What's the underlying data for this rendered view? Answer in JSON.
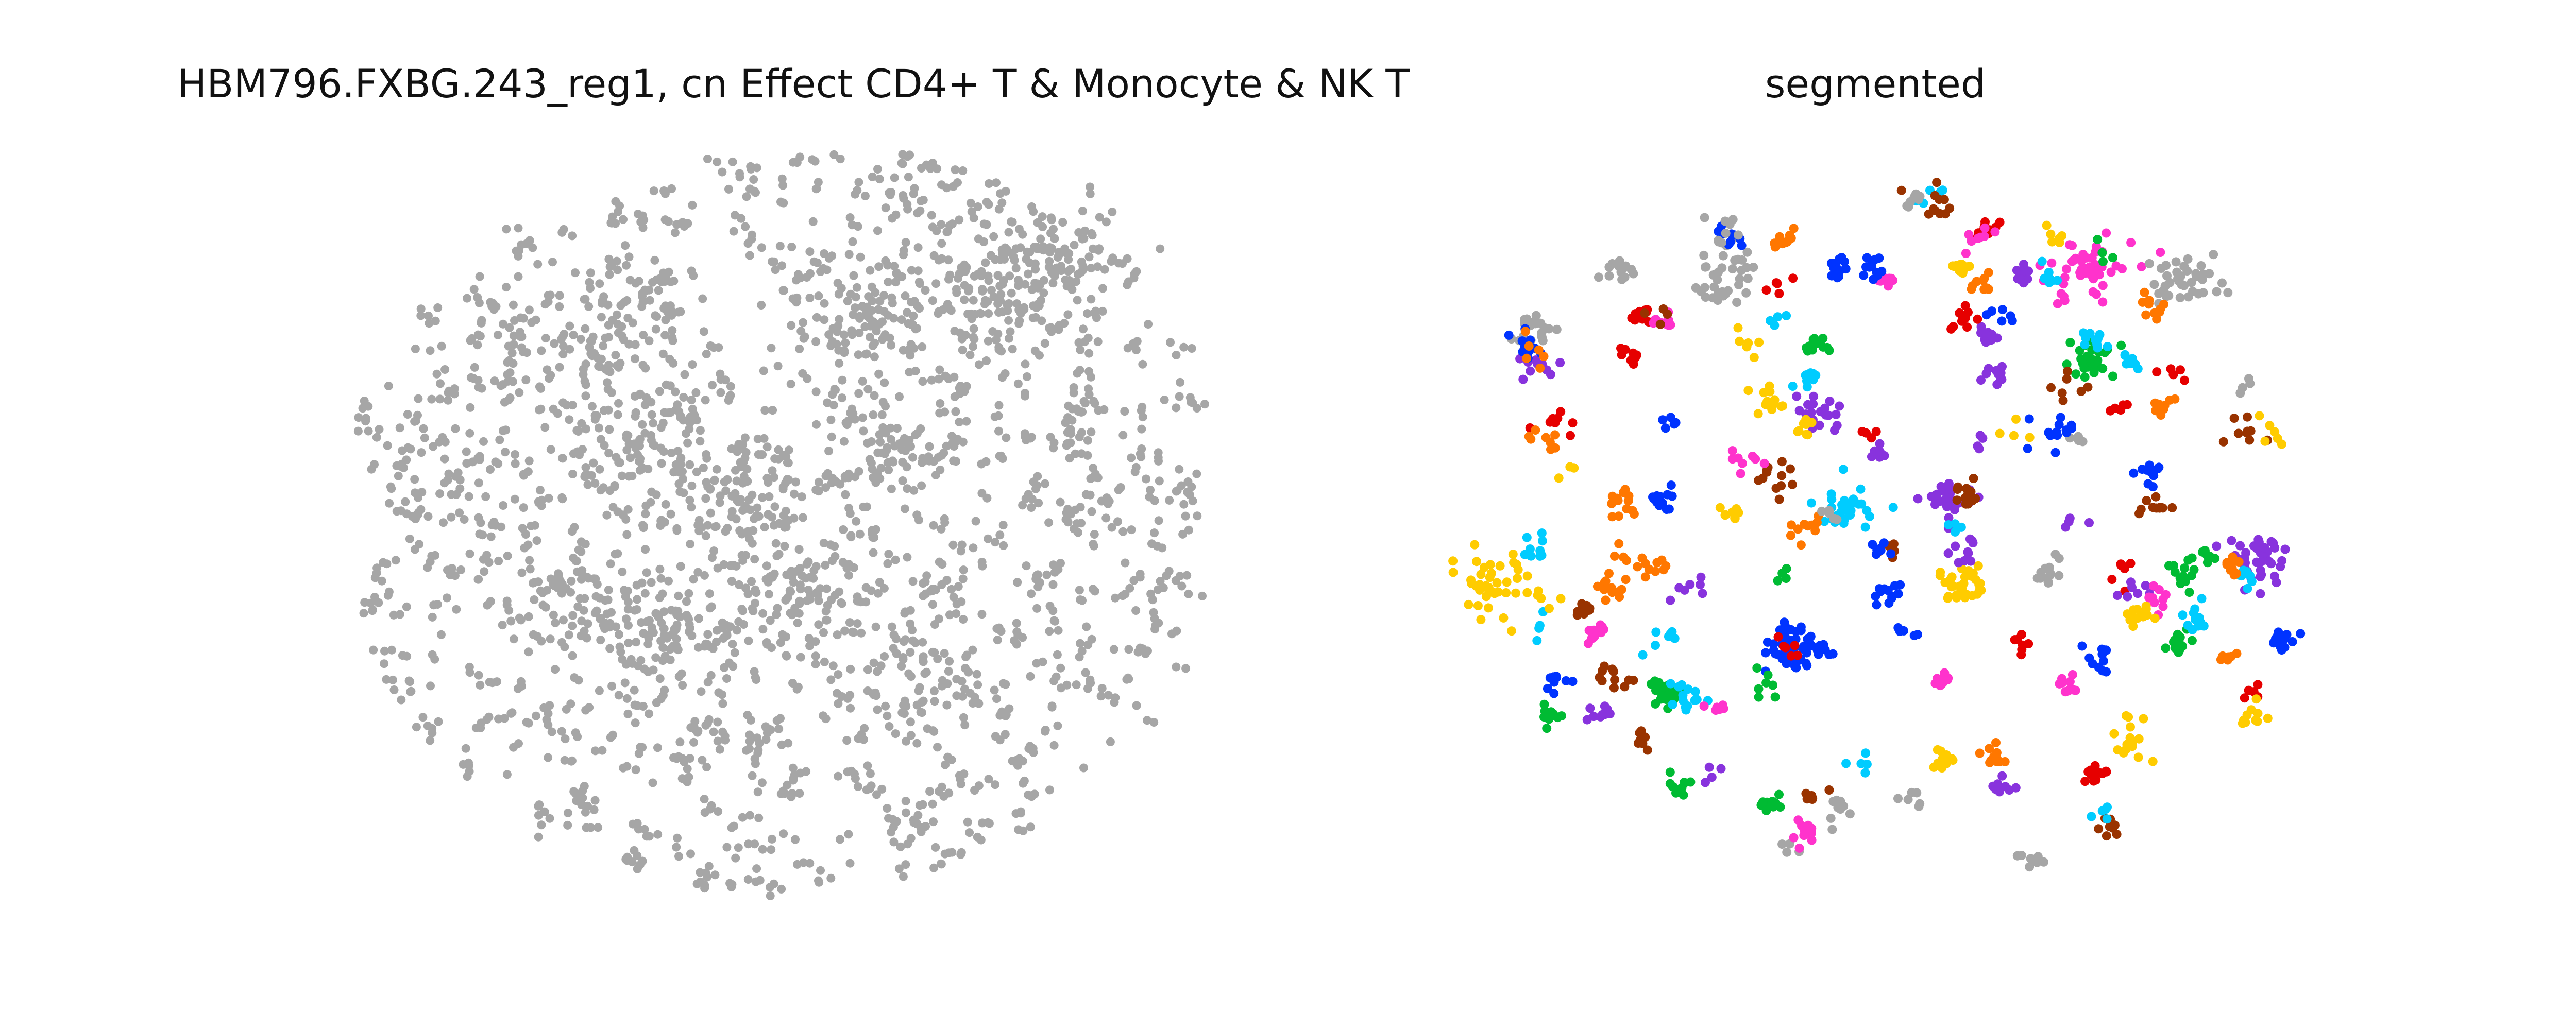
{
  "figure": {
    "panels": [
      {
        "title": "HBM796.FXBG.243_reg1, cn Effect CD4+ T & Monocyte & NK T"
      },
      {
        "title": "segmented"
      }
    ]
  },
  "chart_data": [
    {
      "type": "scatter",
      "title": "HBM796.FXBG.243_reg1, cn Effect CD4+ T & Monocyte & NK T",
      "axes_visible": false,
      "grid": false,
      "xlim": [
        0,
        1
      ],
      "ylim": [
        0,
        1
      ],
      "point_color": "#a6a6a6",
      "generator": {
        "count": 2600,
        "seed": 17
      },
      "clusters": [
        {
          "x": 0.12,
          "y": 0.55,
          "n": 30
        },
        {
          "x": 0.18,
          "y": 0.74,
          "n": 40
        },
        {
          "x": 0.3,
          "y": 0.78,
          "n": 60
        },
        {
          "x": 0.33,
          "y": 0.6,
          "n": 70
        },
        {
          "x": 0.36,
          "y": 0.35,
          "n": 90
        },
        {
          "x": 0.45,
          "y": 0.52,
          "n": 80
        },
        {
          "x": 0.52,
          "y": 0.4,
          "n": 60
        },
        {
          "x": 0.6,
          "y": 0.8,
          "n": 70
        },
        {
          "x": 0.74,
          "y": 0.83,
          "n": 80
        },
        {
          "x": 0.82,
          "y": 0.86,
          "n": 70
        },
        {
          "x": 0.88,
          "y": 0.55,
          "n": 40
        },
        {
          "x": 0.68,
          "y": 0.3,
          "n": 40
        },
        {
          "x": 0.25,
          "y": 0.4,
          "n": 50
        },
        {
          "x": 0.62,
          "y": 0.6,
          "n": 60
        }
      ]
    },
    {
      "type": "scatter",
      "title": "segmented",
      "axes_visible": false,
      "grid": false,
      "xlim": [
        0,
        1
      ],
      "ylim": [
        0,
        1
      ],
      "colors": [
        "#e60000",
        "#0033ff",
        "#ff33cc",
        "#00ccff",
        "#ffcc00",
        "#00bb33",
        "#8833dd",
        "#ff7700",
        "#993300",
        "#a6a6a6"
      ],
      "generator": {
        "seed": 42
      },
      "segments": [
        {
          "x": 0.04,
          "y": 0.42,
          "c": 4,
          "n": 40,
          "s": 0.025
        },
        {
          "x": 0.94,
          "y": 0.45,
          "c": 6,
          "n": 40,
          "s": 0.02
        },
        {
          "x": 0.4,
          "y": 0.33,
          "c": 1,
          "n": 50,
          "s": 0.018
        },
        {
          "x": 0.6,
          "y": 0.42,
          "c": 4,
          "n": 35,
          "s": 0.015
        },
        {
          "x": 0.74,
          "y": 0.84,
          "c": 2,
          "n": 45,
          "s": 0.025
        },
        {
          "x": 0.86,
          "y": 0.83,
          "c": 9,
          "n": 40,
          "s": 0.02
        },
        {
          "x": 0.32,
          "y": 0.84,
          "c": 9,
          "n": 30,
          "s": 0.02
        },
        {
          "x": 0.1,
          "y": 0.76,
          "c": 9,
          "n": 20,
          "s": 0.012
        },
        {
          "x": 0.97,
          "y": 0.34,
          "c": 1,
          "n": 20,
          "s": 0.01
        },
        {
          "x": 0.75,
          "y": 0.72,
          "c": 5,
          "n": 30,
          "s": 0.015
        },
        {
          "x": 0.46,
          "y": 0.52,
          "c": 3,
          "n": 30,
          "s": 0.018
        },
        {
          "x": 0.58,
          "y": 0.53,
          "c": 6,
          "n": 30,
          "s": 0.015
        },
        {
          "x": 0.25,
          "y": 0.27,
          "c": 5,
          "n": 25,
          "s": 0.012
        },
        {
          "x": 0.43,
          "y": 0.65,
          "c": 6,
          "n": 20,
          "s": 0.012
        },
        {
          "x": 0.62,
          "y": 0.9,
          "c": 0,
          "n": 12,
          "s": 0.01
        },
        {
          "x": 0.22,
          "y": 0.78,
          "c": 0,
          "n": 10,
          "s": 0.008
        }
      ],
      "scatter_blobs": 130
    }
  ]
}
